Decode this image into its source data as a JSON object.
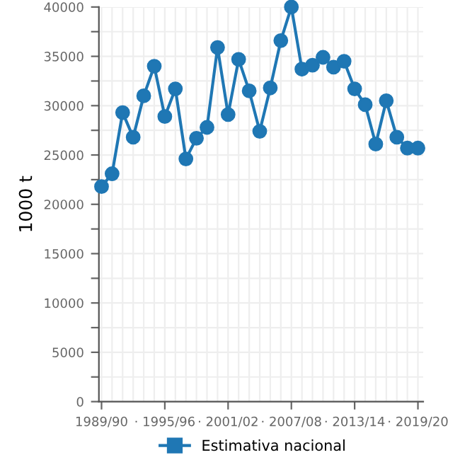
{
  "chart_data": {
    "type": "line",
    "ylabel": "1000 t",
    "categories": [
      "1989/90",
      null,
      null,
      null,
      null,
      null,
      "· 1995/96",
      null,
      null,
      null,
      null,
      null,
      "· 2001/02",
      null,
      null,
      null,
      null,
      null,
      "· 2007/08",
      null,
      null,
      null,
      null,
      null,
      "· 2013/14",
      null,
      null,
      null,
      null,
      null,
      "· 2019/20"
    ],
    "series": [
      {
        "name": "Estimativa nacional",
        "color": "#1f77b4",
        "values": [
          21800,
          23100,
          29300,
          26800,
          31000,
          34000,
          28900,
          31700,
          24600,
          26700,
          27800,
          35900,
          29100,
          34700,
          31500,
          27400,
          31800,
          36600,
          40000,
          33700,
          34100,
          34900,
          33900,
          34500,
          31700,
          30100,
          26100,
          30500,
          26800,
          25700,
          25700
        ]
      }
    ],
    "ylim": [
      0,
      40000
    ],
    "yticks": [
      0,
      {
        "value": 2500,
        "label": null
      },
      5000,
      {
        "value": 7500,
        "label": null
      },
      10000,
      {
        "value": 12500,
        "label": null
      },
      15000,
      {
        "value": 17500,
        "label": null
      },
      20000,
      {
        "value": 22500,
        "label": null
      },
      25000,
      {
        "value": 27500,
        "label": null
      },
      30000,
      {
        "value": 32500,
        "label": null
      },
      35000,
      {
        "value": 37500,
        "label": null
      },
      40000
    ],
    "grid": true,
    "legend": "bottom",
    "marker": "circle",
    "line_style": "solid"
  }
}
